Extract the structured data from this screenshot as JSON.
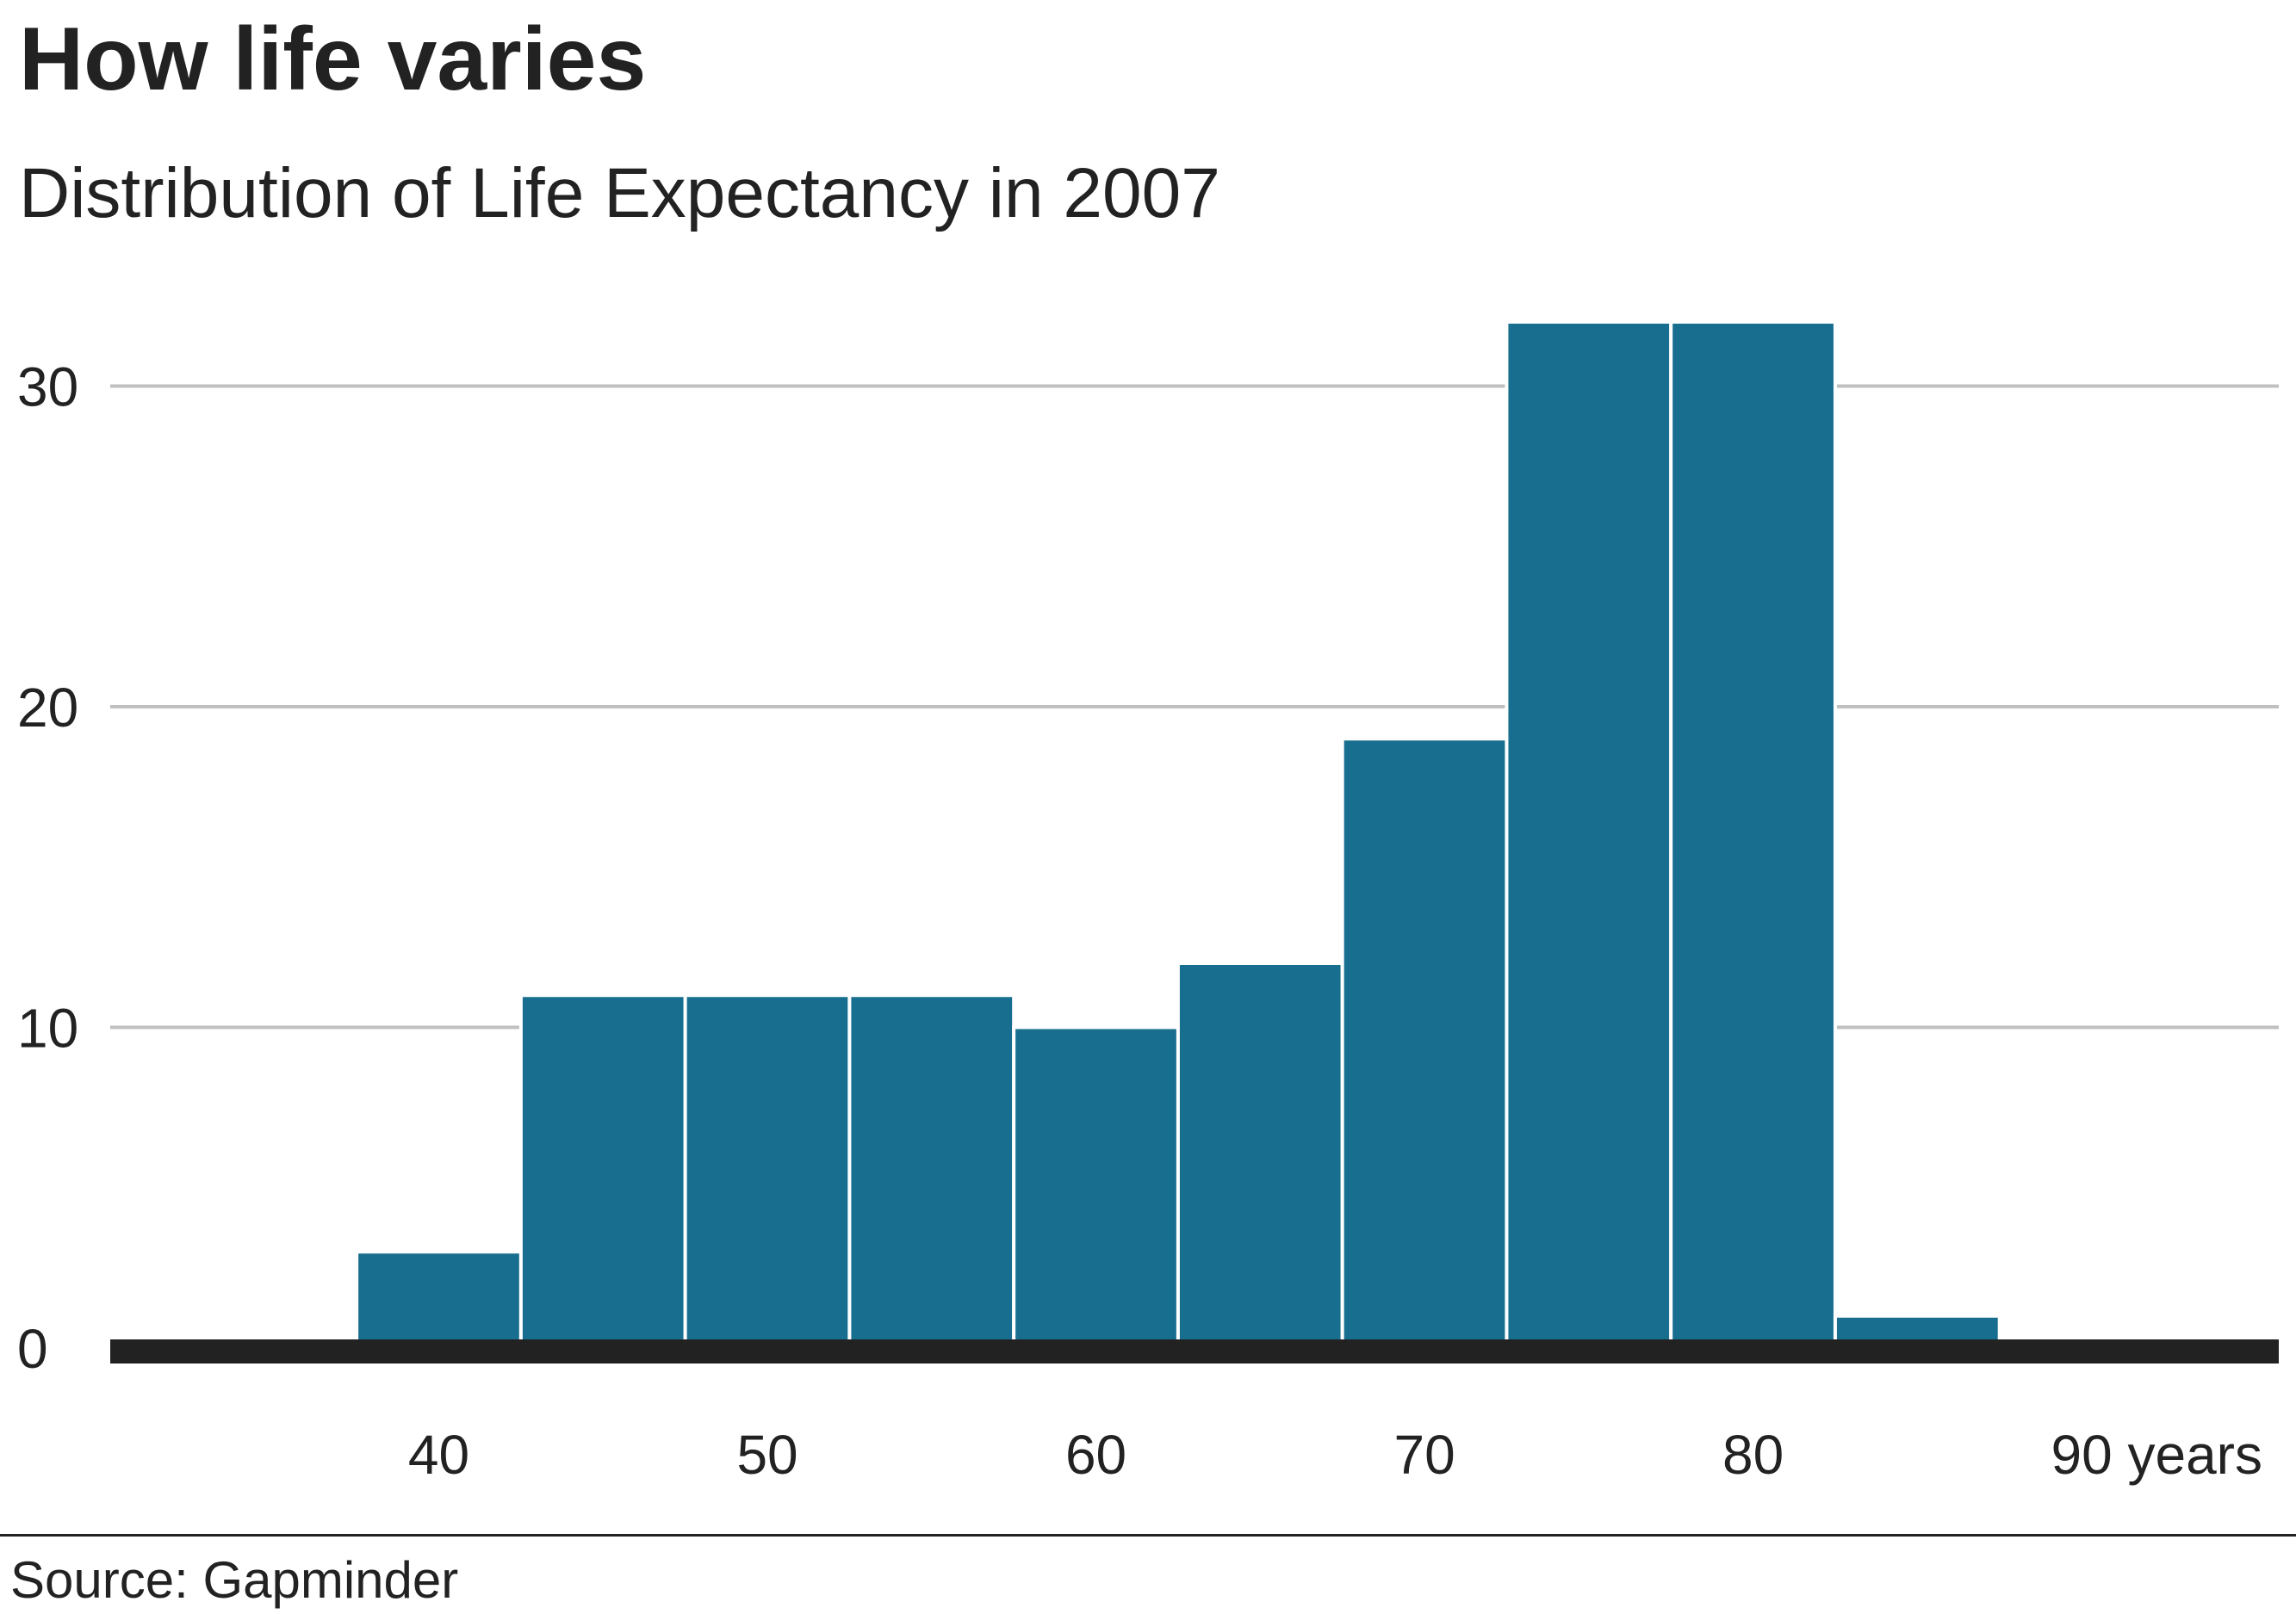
{
  "title": "How life varies",
  "subtitle": "Distribution of Life Expectancy in 2007",
  "source": "Source: Gapminder",
  "colors": {
    "bar": "#186e8f",
    "gridline": "#c0c0c0",
    "baseline": "#222222",
    "text": "#222222"
  },
  "chart_data": {
    "type": "bar",
    "bin_edges": [
      37.5,
      42.5,
      47.5,
      52.5,
      57.5,
      62.5,
      67.5,
      72.5,
      77.5,
      82.5,
      87.5
    ],
    "values": [
      3,
      11,
      11,
      11,
      10,
      12,
      19,
      32,
      32,
      1
    ],
    "xlim": [
      30,
      96
    ],
    "ylim": [
      0,
      32
    ],
    "x_ticks": [
      40,
      50,
      60,
      70,
      80,
      90
    ],
    "x_tick_labels": [
      "40",
      "50",
      "60",
      "70",
      "80",
      "90 years"
    ],
    "y_ticks": [
      0,
      10,
      20,
      30
    ],
    "y_tick_labels": [
      "0",
      "10",
      "20",
      "30"
    ],
    "grid": true,
    "legend": "none"
  }
}
